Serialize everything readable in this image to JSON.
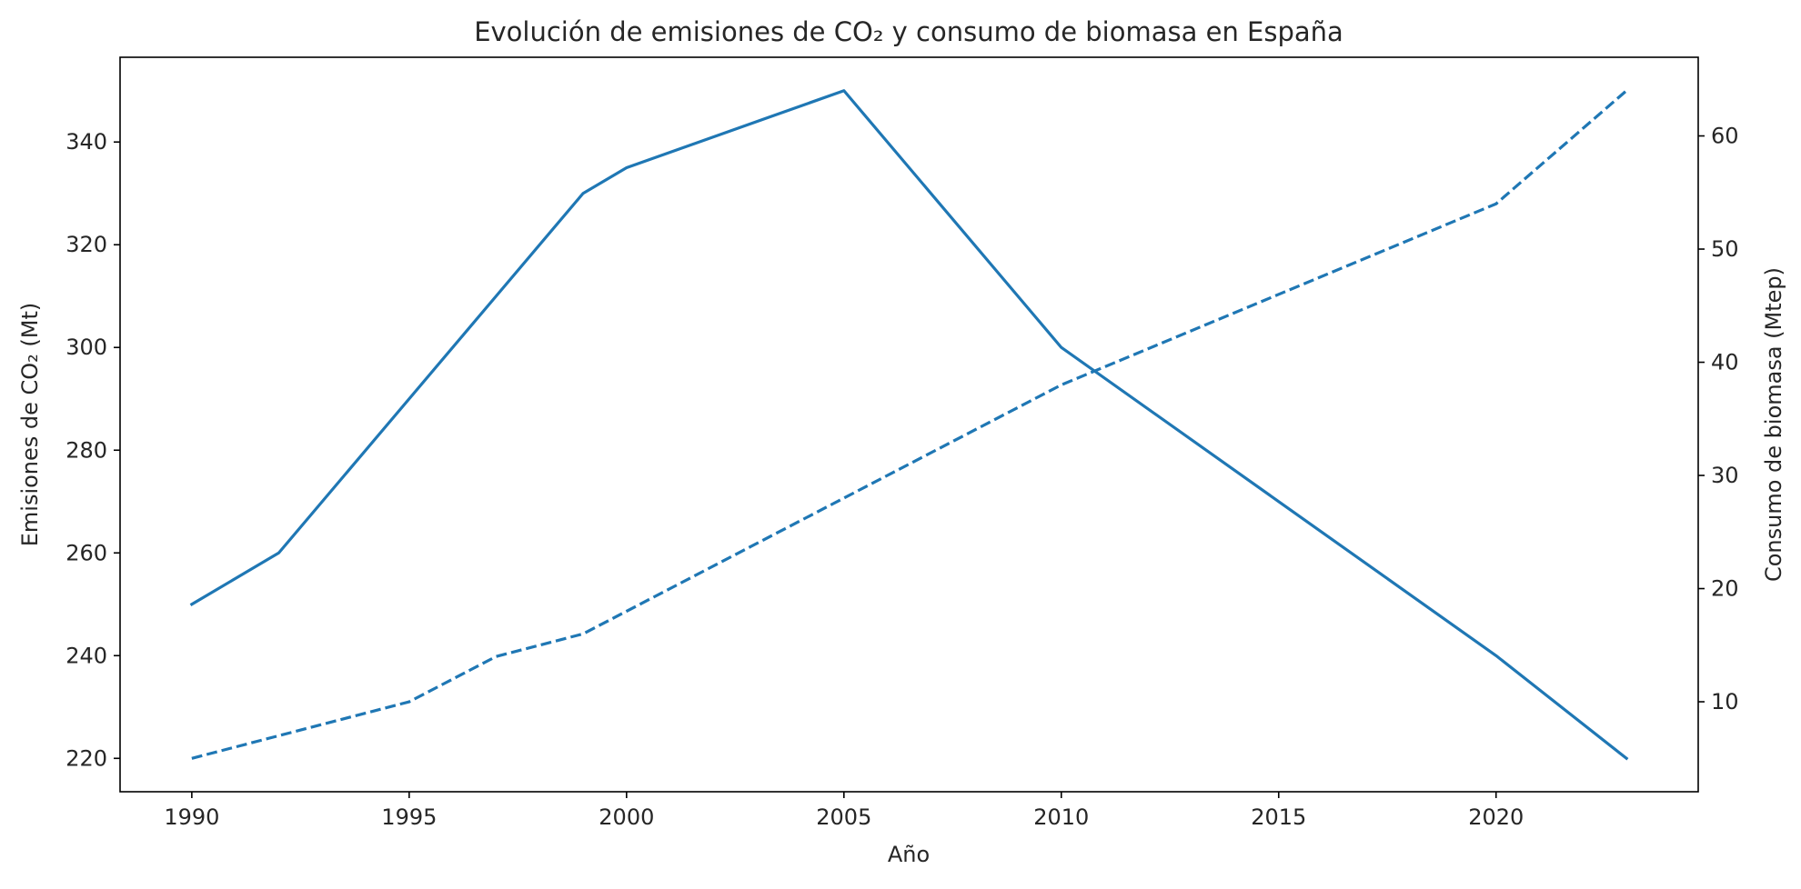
{
  "chart_data": {
    "type": "line",
    "title": "Evolución de emisiones de CO₂ y consumo de biomasa en España",
    "xlabel": "Año",
    "ylabel": "Emisiones de CO₂ (Mt)",
    "y2label": "Consumo de biomasa (Mtep)",
    "x": [
      1990,
      1992,
      1995,
      1997,
      1999,
      2000,
      2005,
      2010,
      2015,
      2020,
      2023
    ],
    "xticks": [
      1990,
      1995,
      2000,
      2005,
      2010,
      2015,
      2020
    ],
    "yticks": [
      220,
      240,
      260,
      280,
      300,
      320,
      340
    ],
    "y2ticks": [
      10,
      20,
      30,
      40,
      50,
      60
    ],
    "xlim": [
      1988.35,
      2024.65
    ],
    "ylim": [
      213.5,
      356.5
    ],
    "y2lim": [
      2.05,
      66.95
    ],
    "grid": false,
    "series": [
      {
        "axis": "left",
        "style": "solid",
        "color": "#1f77b4",
        "values": [
          250,
          260,
          290,
          310,
          330,
          335,
          350,
          300,
          270,
          240,
          220
        ]
      },
      {
        "axis": "right",
        "style": "dashed",
        "color": "#1f77b4",
        "values": [
          5,
          7,
          10,
          14,
          16,
          18,
          28,
          38,
          46,
          54,
          64
        ]
      }
    ]
  }
}
